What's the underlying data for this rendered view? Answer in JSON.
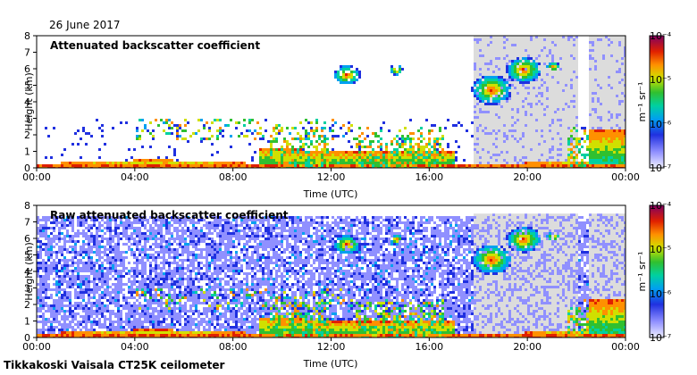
{
  "date_label": "26 June 2017",
  "footer_label": "Tikkakoski Vaisala CT25K ceilometer",
  "colors": {
    "no_data": "#dcdcdc",
    "scale": [
      "#f0f0ff",
      "#9090ff",
      "#2030e0",
      "#00a0f0",
      "#00d0a0",
      "#30c030",
      "#d0e000",
      "#ff9000",
      "#e02000",
      "#800060"
    ]
  },
  "chart_data": [
    {
      "type": "heatmap",
      "title": "Attenuated backscatter coefficient",
      "xlabel": "Time (UTC)",
      "ylabel": "Height (km)",
      "xlim": [
        "00:00",
        "24:00"
      ],
      "ylim": [
        0,
        8
      ],
      "x_tick_labels": [
        "00:00",
        "04:00",
        "08:00",
        "12:00",
        "16:00",
        "20:00",
        "00:00"
      ],
      "y_tick_labels": [
        "0",
        "1",
        "2",
        "3",
        "4",
        "5",
        "6",
        "7",
        "8"
      ],
      "colorbar": {
        "unit": "m⁻¹ sr⁻¹",
        "scale": "log",
        "range": [
          1e-07,
          0.0001
        ],
        "tick_labels": [
          "10⁻⁴",
          "10⁻⁵",
          "10⁻⁶",
          "10⁻⁷"
        ]
      }
    },
    {
      "type": "heatmap",
      "title": "Raw attenuated backscatter coefficient",
      "xlabel": "Time (UTC)",
      "ylabel": "Height (km)",
      "xlim": [
        "00:00",
        "24:00"
      ],
      "ylim": [
        0,
        8
      ],
      "x_tick_labels": [
        "00:00",
        "04:00",
        "08:00",
        "12:00",
        "16:00",
        "20:00",
        "00:00"
      ],
      "y_tick_labels": [
        "0",
        "1",
        "2",
        "3",
        "4",
        "5",
        "6",
        "7",
        "8"
      ],
      "colorbar": {
        "unit": "m⁻¹ sr⁻¹",
        "scale": "log",
        "range": [
          1e-07,
          0.0001
        ],
        "tick_labels": [
          "10⁻⁴",
          "10⁻⁵",
          "10⁻⁶",
          "10⁻⁷"
        ]
      }
    }
  ]
}
